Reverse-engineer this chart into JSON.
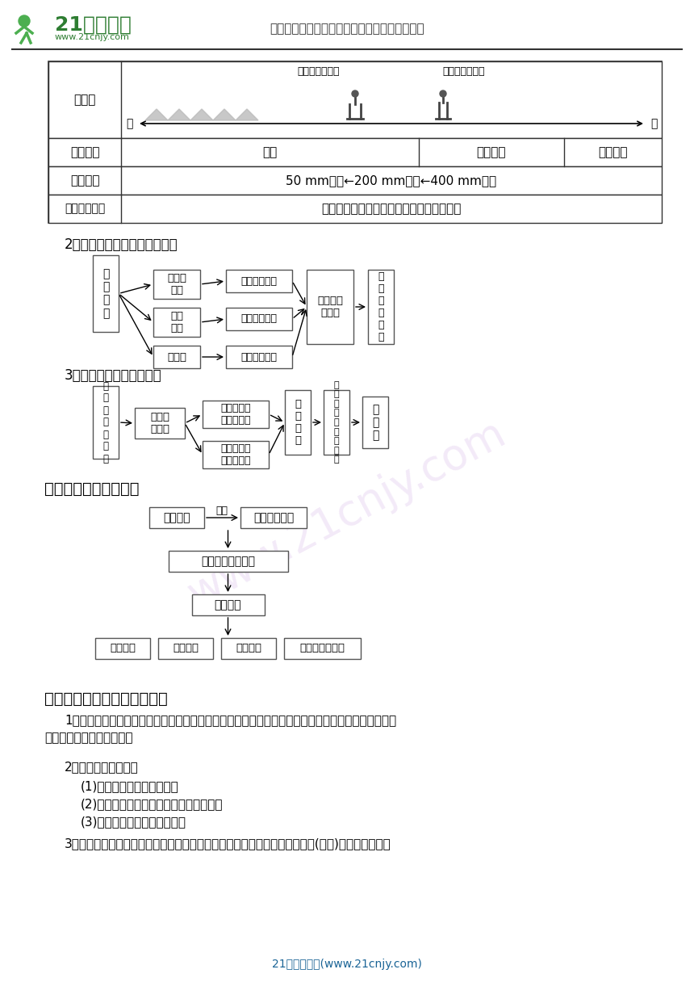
{
  "title_logo": "21世纪教育",
  "subtitle": "中国最大型、最专业的中小学教育资源门户网站",
  "website": "www.21cnjy.com",
  "bg_color": "#ffffff",
  "section2_title": "2．西北地区生态环境的脆弱性",
  "section3_title": "3．导致荒漠化的自然因素",
  "section4_title": "三、荒漠化的人为因素",
  "section5_title": "四、荒漠化防治的对策和措施",
  "footer_text": "21世纪教育网(www.21cnjy.com)",
  "text_color": "#000000",
  "border_color": "#555555",
  "para1_line1": "1．荒漠化的危害：使土地自然生产力日渐丧失，影响西北地区经济和社会的持续发展，威胁当地甚至",
  "para1_line2": "其他地区人们的生存环境。",
  "para2_title": "2．荒漠化防治的内容",
  "para2_item1": "(1)预防潜在荒漠化的威胁。",
  "para2_item2": "(2)扭转正在发展中的荒漠化土地的退化。",
  "para2_item3": "(3)恢复荒漠化土地的生产力。",
  "para3": "3．防治原则：坚持维护生态平衡与提高经济效益相结合，治山、治水、治碱(盐碱)、治沙相结合。"
}
